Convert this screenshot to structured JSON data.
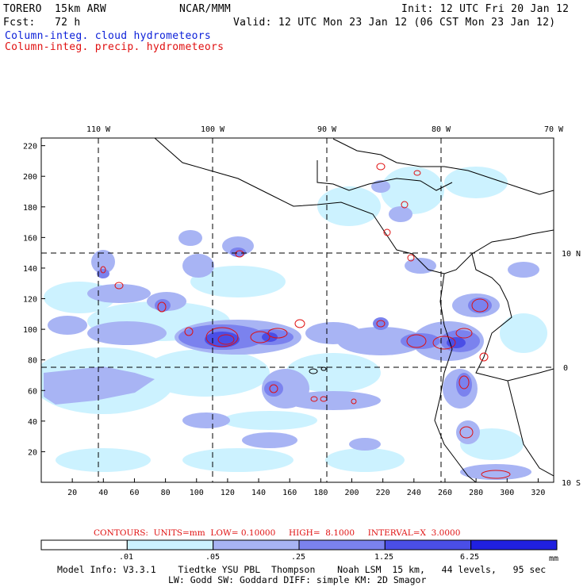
{
  "header": {
    "model": "TORERO  15km ARW",
    "center": "NCAR/MMM",
    "init": "Init: 12 UTC Fri 20 Jan 12",
    "fcst": "Fcst:   72 h",
    "valid": "Valid: 12 UTC Mon 23 Jan 12 (06 CST Mon 23 Jan 12)",
    "legend_cloud": "Column-integ. cloud hydrometeors",
    "legend_precip": "Column-integ. precip. hydrometeors"
  },
  "map": {
    "lon_labels": [
      "110 W",
      "100 W",
      "90 W",
      "80 W",
      "70 W"
    ],
    "lat_labels": [
      "10 N",
      "0",
      "10 S"
    ],
    "x_ticks": [
      "20",
      "40",
      "60",
      "80",
      "100",
      "120",
      "140",
      "160",
      "180",
      "200",
      "220",
      "240",
      "260",
      "280",
      "300",
      "320"
    ],
    "y_ticks": [
      "220",
      "200",
      "180",
      "160",
      "140",
      "120",
      "100",
      "80",
      "60",
      "40",
      "20"
    ],
    "fill_colors": [
      "#ccf2ff",
      "#a8b4f4",
      "#7b82ee",
      "#4a4ee6",
      "#2020e0"
    ]
  },
  "contours": {
    "label": "CONTOURS:  UNITS=mm  LOW= 0.10000     HIGH=  8.1000     INTERVAL=X  3.0000"
  },
  "colorbar": {
    "labels": [
      ".01",
      ".05",
      ".25",
      "1.25",
      "6.25"
    ],
    "unit": "mm",
    "colors": [
      "#ffffff",
      "#ccf2ff",
      "#a8b4f4",
      "#7b82ee",
      "#4a4ee6",
      "#2020e0"
    ]
  },
  "footer": {
    "line1": "Model Info: V3.3.1    Tiedtke YSU PBL  Thompson    Noah LSM  15 km,   44 levels,   95 sec",
    "line2": "LW: Godd SW: Goddard DIFF: simple KM: 2D Smagor"
  }
}
